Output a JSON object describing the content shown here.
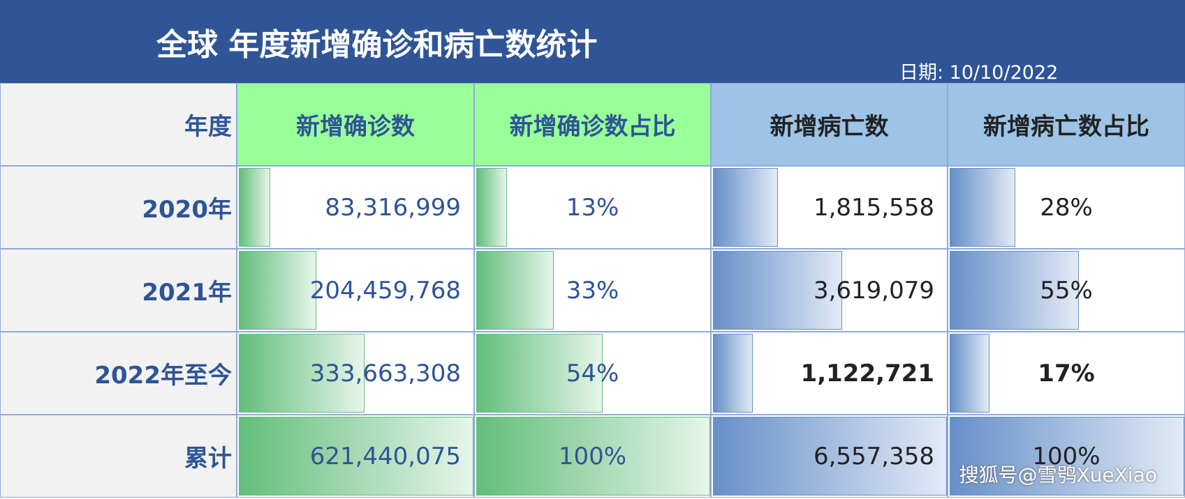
{
  "header": {
    "title": "全球 年度新增确诊和病亡数统计",
    "date": "日期: 10/10/2022"
  },
  "table": {
    "columns": [
      "年度",
      "新增确诊数",
      "新增确诊数占比",
      "新增病亡数",
      "新增病亡数占比"
    ],
    "rows": [
      [
        "2020年",
        "83,316,999",
        "13%",
        "1,815,558",
        "28%"
      ],
      [
        "2021年",
        "204,459,768",
        "33%",
        "3,619,079",
        "55%"
      ],
      [
        "2022年至今",
        "333,663,308",
        "54%",
        "1,122,721",
        "17%"
      ],
      [
        "累计",
        "621,440,075",
        "100%",
        "6,557,358",
        "100%"
      ]
    ]
  },
  "watermark": "搜狐号@雪鸮XueXiao"
}
